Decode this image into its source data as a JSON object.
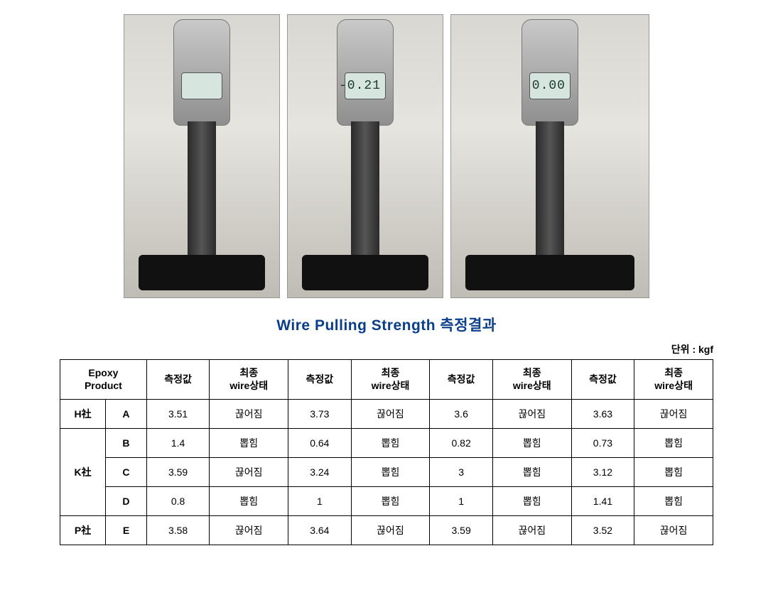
{
  "photos": {
    "readings": [
      "",
      "-0.21",
      "0.00"
    ]
  },
  "title": "Wire Pulling Strength 측정결과",
  "unit_label": "단위 : kgf",
  "table": {
    "header": {
      "epoxy_product": "Epoxy\nProduct",
      "pairs": [
        {
          "val": "측정값",
          "state": "최종\nwire상태"
        },
        {
          "val": "측정값",
          "state": "최종\nwire상태"
        },
        {
          "val": "측정값",
          "state": "최종\nwire상태"
        },
        {
          "val": "측정값",
          "state": "최종\nwire상태"
        }
      ]
    },
    "groups": [
      {
        "company": "H社",
        "rows": [
          {
            "product": "A",
            "cells": [
              {
                "val": "3.51",
                "state": "끊어짐"
              },
              {
                "val": "3.73",
                "state": "끊어짐"
              },
              {
                "val": "3.6",
                "state": "끊어짐"
              },
              {
                "val": "3.63",
                "state": "끊어짐"
              }
            ]
          }
        ]
      },
      {
        "company": "K社",
        "rows": [
          {
            "product": "B",
            "cells": [
              {
                "val": "1.4",
                "state": "뽑힘"
              },
              {
                "val": "0.64",
                "state": "뽑힘"
              },
              {
                "val": "0.82",
                "state": "뽑힘"
              },
              {
                "val": "0.73",
                "state": "뽑힘"
              }
            ]
          },
          {
            "product": "C",
            "cells": [
              {
                "val": "3.59",
                "state": "끊어짐"
              },
              {
                "val": "3.24",
                "state": "뽑힘"
              },
              {
                "val": "3",
                "state": "뽑힘"
              },
              {
                "val": "3.12",
                "state": "뽑힘"
              }
            ]
          },
          {
            "product": "D",
            "cells": [
              {
                "val": "0.8",
                "state": "뽑힘"
              },
              {
                "val": "1",
                "state": "뽑힘"
              },
              {
                "val": "1",
                "state": "뽑힘"
              },
              {
                "val": "1.41",
                "state": "뽑힘"
              }
            ]
          }
        ]
      },
      {
        "company": "P社",
        "rows": [
          {
            "product": "E",
            "cells": [
              {
                "val": "3.58",
                "state": "끊어짐"
              },
              {
                "val": "3.64",
                "state": "끊어짐"
              },
              {
                "val": "3.59",
                "state": "끊어짐"
              },
              {
                "val": "3.52",
                "state": "끊어짐"
              }
            ]
          }
        ]
      }
    ]
  },
  "colors": {
    "title": "#0a3e8a",
    "border": "#000000",
    "background": "#ffffff"
  }
}
